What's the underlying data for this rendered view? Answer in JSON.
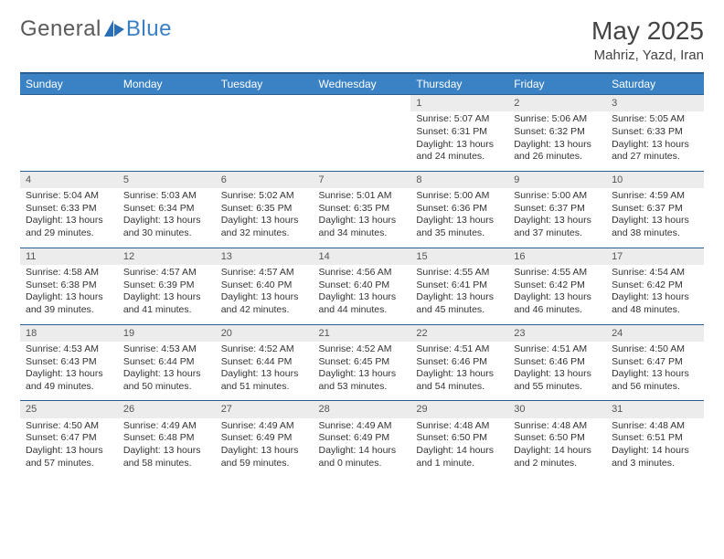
{
  "logo": {
    "text1": "General",
    "text2": "Blue",
    "icon_color": "#2a6fb5"
  },
  "title": "May 2025",
  "location": "Mahriz, Yazd, Iran",
  "colors": {
    "header_bg": "#3a82c4",
    "header_border": "#2a5e8e",
    "daynum_bg": "#ececec",
    "page_bg": "#ffffff",
    "text": "#333333"
  },
  "weekdays": [
    "Sunday",
    "Monday",
    "Tuesday",
    "Wednesday",
    "Thursday",
    "Friday",
    "Saturday"
  ],
  "weeks": [
    [
      null,
      null,
      null,
      null,
      {
        "n": "1",
        "sr": "5:07 AM",
        "ss": "6:31 PM",
        "dl": "13 hours and 24 minutes."
      },
      {
        "n": "2",
        "sr": "5:06 AM",
        "ss": "6:32 PM",
        "dl": "13 hours and 26 minutes."
      },
      {
        "n": "3",
        "sr": "5:05 AM",
        "ss": "6:33 PM",
        "dl": "13 hours and 27 minutes."
      }
    ],
    [
      {
        "n": "4",
        "sr": "5:04 AM",
        "ss": "6:33 PM",
        "dl": "13 hours and 29 minutes."
      },
      {
        "n": "5",
        "sr": "5:03 AM",
        "ss": "6:34 PM",
        "dl": "13 hours and 30 minutes."
      },
      {
        "n": "6",
        "sr": "5:02 AM",
        "ss": "6:35 PM",
        "dl": "13 hours and 32 minutes."
      },
      {
        "n": "7",
        "sr": "5:01 AM",
        "ss": "6:35 PM",
        "dl": "13 hours and 34 minutes."
      },
      {
        "n": "8",
        "sr": "5:00 AM",
        "ss": "6:36 PM",
        "dl": "13 hours and 35 minutes."
      },
      {
        "n": "9",
        "sr": "5:00 AM",
        "ss": "6:37 PM",
        "dl": "13 hours and 37 minutes."
      },
      {
        "n": "10",
        "sr": "4:59 AM",
        "ss": "6:37 PM",
        "dl": "13 hours and 38 minutes."
      }
    ],
    [
      {
        "n": "11",
        "sr": "4:58 AM",
        "ss": "6:38 PM",
        "dl": "13 hours and 39 minutes."
      },
      {
        "n": "12",
        "sr": "4:57 AM",
        "ss": "6:39 PM",
        "dl": "13 hours and 41 minutes."
      },
      {
        "n": "13",
        "sr": "4:57 AM",
        "ss": "6:40 PM",
        "dl": "13 hours and 42 minutes."
      },
      {
        "n": "14",
        "sr": "4:56 AM",
        "ss": "6:40 PM",
        "dl": "13 hours and 44 minutes."
      },
      {
        "n": "15",
        "sr": "4:55 AM",
        "ss": "6:41 PM",
        "dl": "13 hours and 45 minutes."
      },
      {
        "n": "16",
        "sr": "4:55 AM",
        "ss": "6:42 PM",
        "dl": "13 hours and 46 minutes."
      },
      {
        "n": "17",
        "sr": "4:54 AM",
        "ss": "6:42 PM",
        "dl": "13 hours and 48 minutes."
      }
    ],
    [
      {
        "n": "18",
        "sr": "4:53 AM",
        "ss": "6:43 PM",
        "dl": "13 hours and 49 minutes."
      },
      {
        "n": "19",
        "sr": "4:53 AM",
        "ss": "6:44 PM",
        "dl": "13 hours and 50 minutes."
      },
      {
        "n": "20",
        "sr": "4:52 AM",
        "ss": "6:44 PM",
        "dl": "13 hours and 51 minutes."
      },
      {
        "n": "21",
        "sr": "4:52 AM",
        "ss": "6:45 PM",
        "dl": "13 hours and 53 minutes."
      },
      {
        "n": "22",
        "sr": "4:51 AM",
        "ss": "6:46 PM",
        "dl": "13 hours and 54 minutes."
      },
      {
        "n": "23",
        "sr": "4:51 AM",
        "ss": "6:46 PM",
        "dl": "13 hours and 55 minutes."
      },
      {
        "n": "24",
        "sr": "4:50 AM",
        "ss": "6:47 PM",
        "dl": "13 hours and 56 minutes."
      }
    ],
    [
      {
        "n": "25",
        "sr": "4:50 AM",
        "ss": "6:47 PM",
        "dl": "13 hours and 57 minutes."
      },
      {
        "n": "26",
        "sr": "4:49 AM",
        "ss": "6:48 PM",
        "dl": "13 hours and 58 minutes."
      },
      {
        "n": "27",
        "sr": "4:49 AM",
        "ss": "6:49 PM",
        "dl": "13 hours and 59 minutes."
      },
      {
        "n": "28",
        "sr": "4:49 AM",
        "ss": "6:49 PM",
        "dl": "14 hours and 0 minutes."
      },
      {
        "n": "29",
        "sr": "4:48 AM",
        "ss": "6:50 PM",
        "dl": "14 hours and 1 minute."
      },
      {
        "n": "30",
        "sr": "4:48 AM",
        "ss": "6:50 PM",
        "dl": "14 hours and 2 minutes."
      },
      {
        "n": "31",
        "sr": "4:48 AM",
        "ss": "6:51 PM",
        "dl": "14 hours and 3 minutes."
      }
    ]
  ],
  "labels": {
    "sunrise": "Sunrise: ",
    "sunset": "Sunset: ",
    "daylight": "Daylight: "
  }
}
